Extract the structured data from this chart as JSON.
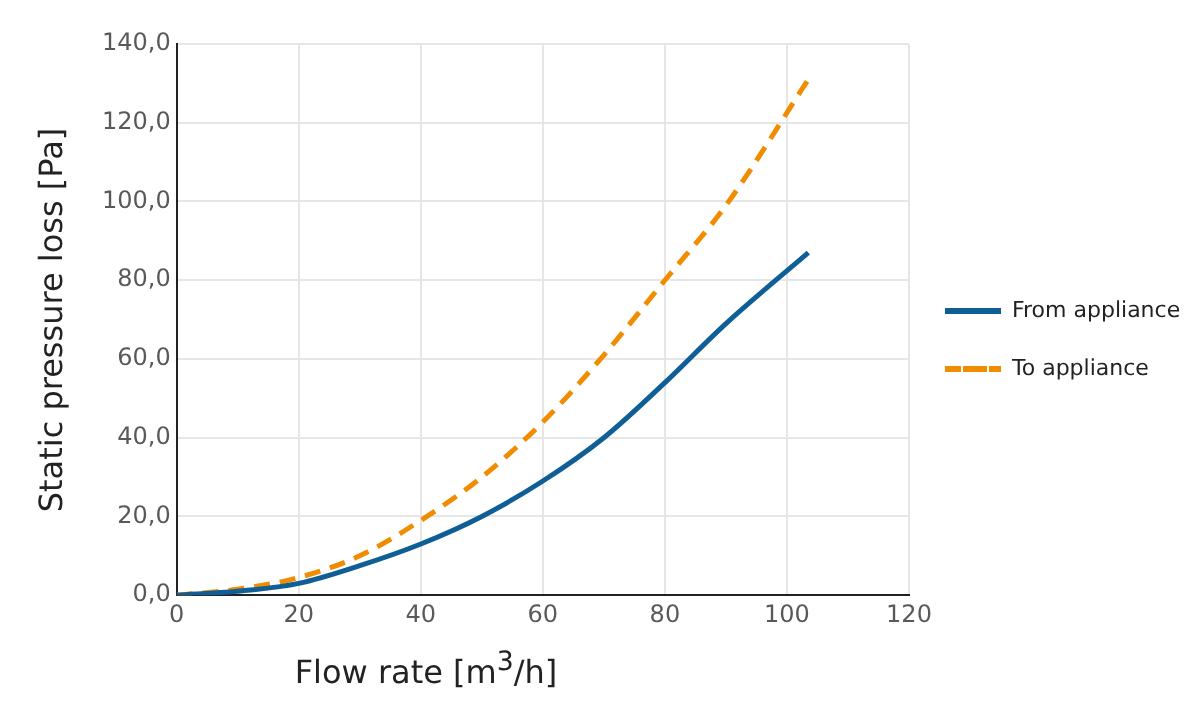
{
  "chart_data": {
    "type": "line",
    "xlabel": "Flow rate [m$^{3}$/h]",
    "ylabel": "Static pressure loss [Pa]",
    "xlim": [
      0,
      120
    ],
    "xticks": [
      0,
      20,
      40,
      60,
      80,
      100,
      120
    ],
    "ylim": [
      0,
      140
    ],
    "yticks": [
      {
        "value": 0,
        "label": "0,0"
      },
      {
        "value": 20,
        "label": "20,0"
      },
      {
        "value": 40,
        "label": "40,0"
      },
      {
        "value": 60,
        "label": "60,0"
      },
      {
        "value": 80,
        "label": "80,0"
      },
      {
        "value": 100,
        "label": "100,0"
      },
      {
        "value": 120,
        "label": "120,0"
      },
      {
        "value": 140,
        "label": "140,0"
      }
    ],
    "grid": true,
    "legend": "right",
    "marker": "none",
    "series": [
      {
        "name": "From appliance",
        "color": "#0f5f96",
        "line_style": "solid",
        "x": [
          0,
          10,
          20,
          30,
          40,
          50,
          60,
          70,
          80,
          90,
          103.5
        ],
        "values": [
          0,
          1,
          3,
          7.5,
          13,
          20,
          29,
          40,
          54,
          69,
          87
        ]
      },
      {
        "name": "To appliance",
        "color": "#f08c00",
        "line_style": "dashed",
        "x": [
          0,
          10,
          20,
          30,
          40,
          50,
          60,
          70,
          80,
          90,
          103.5
        ],
        "values": [
          0,
          1.5,
          4.5,
          10,
          19,
          30,
          44,
          61,
          80,
          99,
          131
        ]
      }
    ]
  }
}
